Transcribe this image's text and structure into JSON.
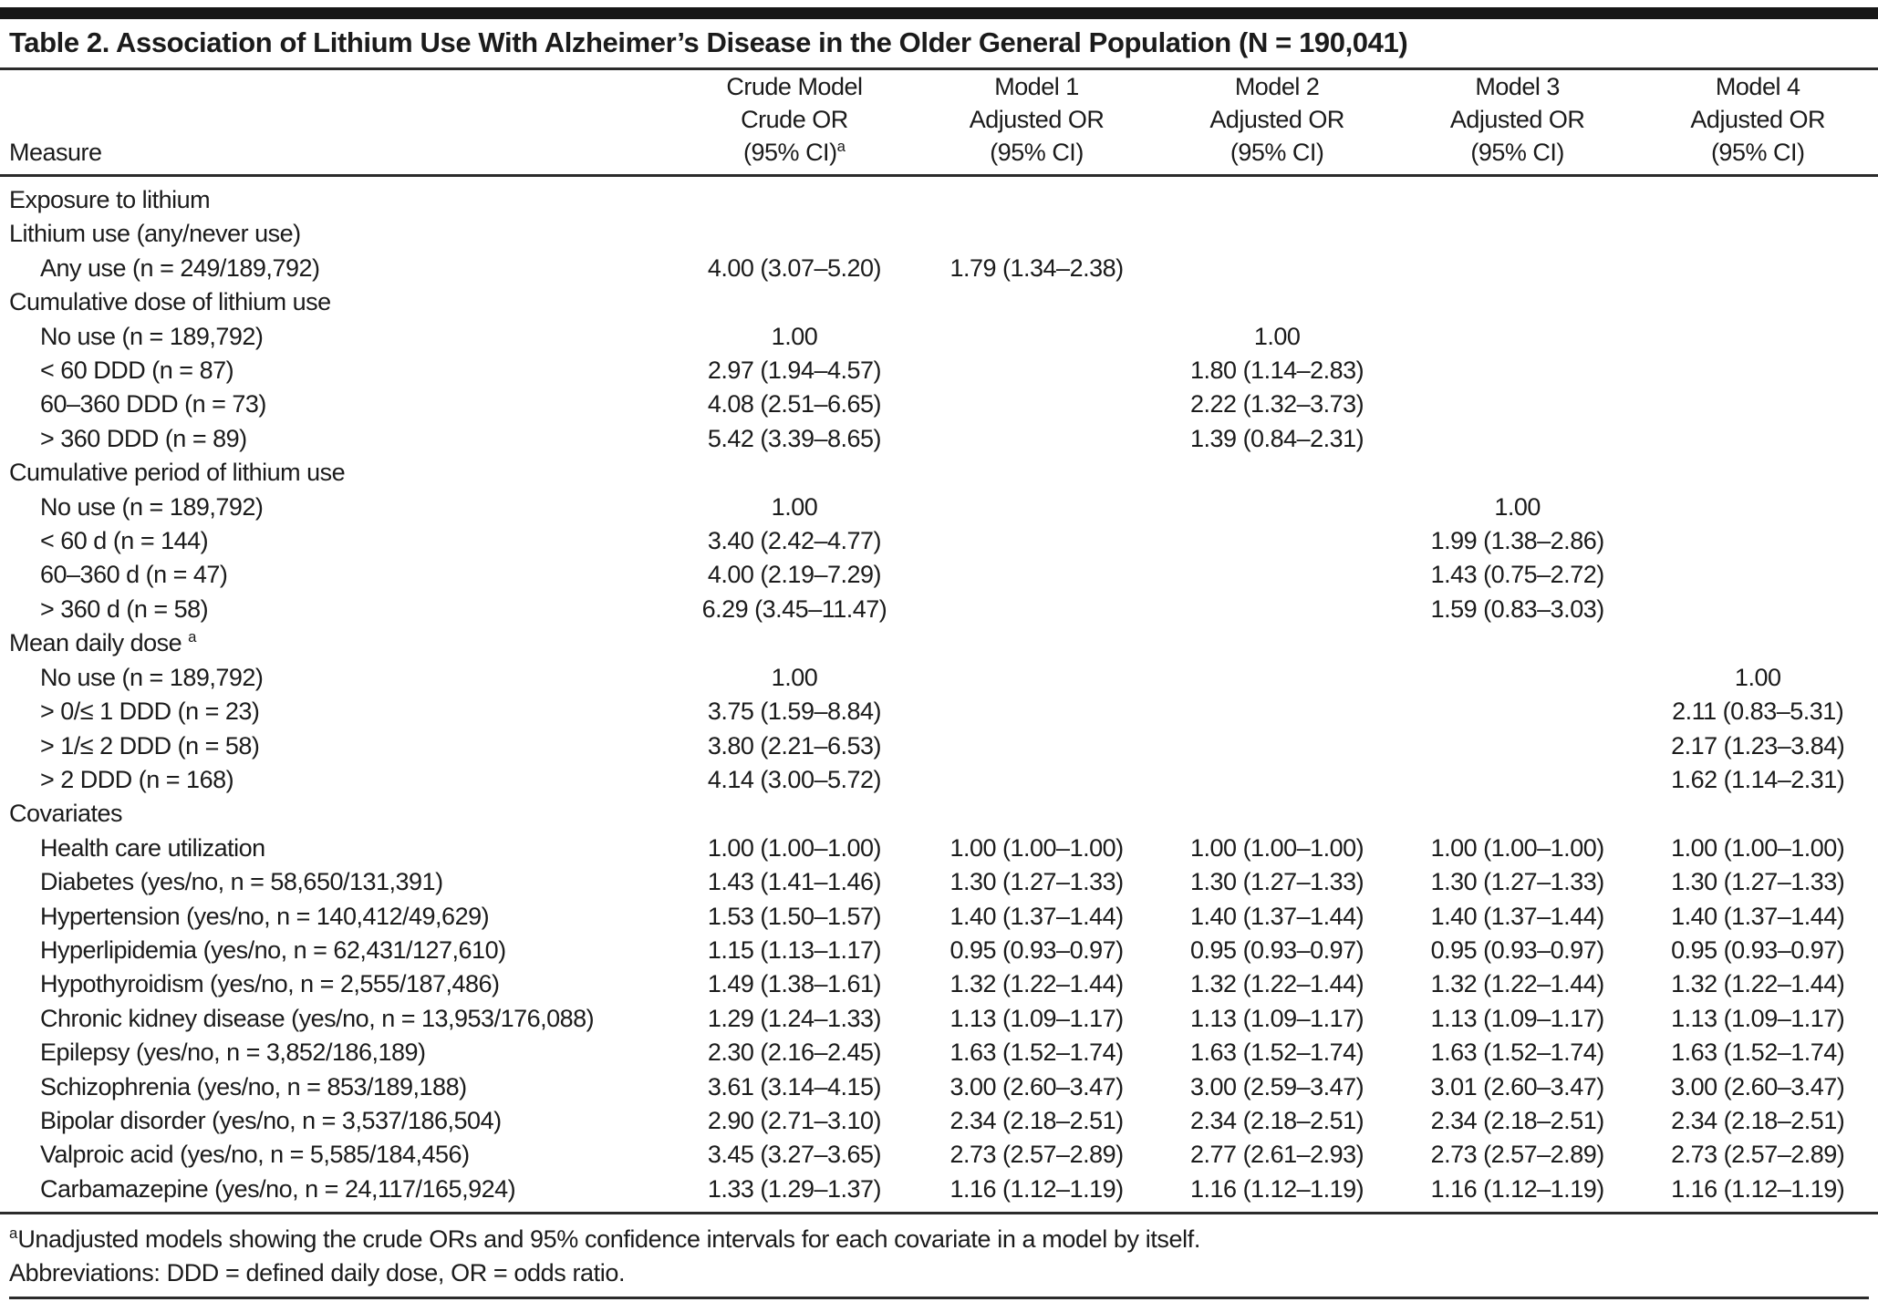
{
  "table": {
    "title": "Table 2. Association of Lithium Use With Alzheimer’s Disease in the Older General Population (N = 190,041)",
    "measure_header": "Measure",
    "columns": [
      {
        "line1": "Crude Model",
        "line2": "Crude OR",
        "line3": "(95% CI)",
        "sup": "a"
      },
      {
        "line1": "Model 1",
        "line2": "Adjusted OR",
        "line3": "(95% CI)",
        "sup": ""
      },
      {
        "line1": "Model 2",
        "line2": "Adjusted OR",
        "line3": "(95% CI)",
        "sup": ""
      },
      {
        "line1": "Model 3",
        "line2": "Adjusted OR",
        "line3": "(95% CI)",
        "sup": ""
      },
      {
        "line1": "Model 4",
        "line2": "Adjusted OR",
        "line3": "(95% CI)",
        "sup": ""
      }
    ],
    "rows": [
      {
        "label": "Exposure to lithium",
        "indent": 0,
        "sup": "",
        "values": [
          "",
          "",
          "",
          "",
          ""
        ]
      },
      {
        "label": "Lithium use (any/never use)",
        "indent": 0,
        "sup": "",
        "values": [
          "",
          "",
          "",
          "",
          ""
        ]
      },
      {
        "label": "Any use (n = 249/189,792)",
        "indent": 1,
        "sup": "",
        "values": [
          "4.00 (3.07–5.20)",
          "1.79 (1.34–2.38)",
          "",
          "",
          ""
        ]
      },
      {
        "label": "Cumulative dose of lithium use",
        "indent": 0,
        "sup": "",
        "values": [
          "",
          "",
          "",
          "",
          ""
        ]
      },
      {
        "label": "No use (n = 189,792)",
        "indent": 1,
        "sup": "",
        "values": [
          "1.00",
          "",
          "1.00",
          "",
          ""
        ]
      },
      {
        "label": "< 60 DDD (n = 87)",
        "indent": 1,
        "sup": "",
        "values": [
          "2.97 (1.94–4.57)",
          "",
          "1.80 (1.14–2.83)",
          "",
          ""
        ]
      },
      {
        "label": "60–360 DDD (n = 73)",
        "indent": 1,
        "sup": "",
        "values": [
          "4.08 (2.51–6.65)",
          "",
          "2.22 (1.32–3.73)",
          "",
          ""
        ]
      },
      {
        "label": "> 360 DDD (n = 89)",
        "indent": 1,
        "sup": "",
        "values": [
          "5.42 (3.39–8.65)",
          "",
          "1.39 (0.84–2.31)",
          "",
          ""
        ]
      },
      {
        "label": "Cumulative period of lithium use",
        "indent": 0,
        "sup": "",
        "values": [
          "",
          "",
          "",
          "",
          ""
        ]
      },
      {
        "label": "No use (n = 189,792)",
        "indent": 1,
        "sup": "",
        "values": [
          "1.00",
          "",
          "",
          "1.00",
          ""
        ]
      },
      {
        "label": "< 60 d (n = 144)",
        "indent": 1,
        "sup": "",
        "values": [
          "3.40 (2.42–4.77)",
          "",
          "",
          "1.99 (1.38–2.86)",
          ""
        ]
      },
      {
        "label": "60–360 d (n = 47)",
        "indent": 1,
        "sup": "",
        "values": [
          "4.00 (2.19–7.29)",
          "",
          "",
          "1.43 (0.75–2.72)",
          ""
        ]
      },
      {
        "label": "> 360 d (n = 58)",
        "indent": 1,
        "sup": "",
        "values": [
          "6.29 (3.45–11.47)",
          "",
          "",
          "1.59 (0.83–3.03)",
          ""
        ]
      },
      {
        "label": "Mean daily dose ",
        "indent": 0,
        "sup": "a",
        "values": [
          "",
          "",
          "",
          "",
          ""
        ]
      },
      {
        "label": "No use (n = 189,792)",
        "indent": 1,
        "sup": "",
        "values": [
          "1.00",
          "",
          "",
          "",
          "1.00"
        ]
      },
      {
        "label": "> 0/≤ 1 DDD (n = 23)",
        "indent": 1,
        "sup": "",
        "values": [
          "3.75 (1.59–8.84)",
          "",
          "",
          "",
          "2.11 (0.83–5.31)"
        ]
      },
      {
        "label": "> 1/≤ 2 DDD (n = 58)",
        "indent": 1,
        "sup": "",
        "values": [
          "3.80 (2.21–6.53)",
          "",
          "",
          "",
          "2.17 (1.23–3.84)"
        ]
      },
      {
        "label": "> 2 DDD (n = 168)",
        "indent": 1,
        "sup": "",
        "values": [
          "4.14 (3.00–5.72)",
          "",
          "",
          "",
          "1.62 (1.14–2.31)"
        ]
      },
      {
        "label": "Covariates",
        "indent": 0,
        "sup": "",
        "values": [
          "",
          "",
          "",
          "",
          ""
        ]
      },
      {
        "label": "Health care utilization",
        "indent": 1,
        "sup": "",
        "values": [
          "1.00 (1.00–1.00)",
          "1.00 (1.00–1.00)",
          "1.00 (1.00–1.00)",
          "1.00 (1.00–1.00)",
          "1.00 (1.00–1.00)"
        ]
      },
      {
        "label": "Diabetes (yes/no, n = 58,650/131,391)",
        "indent": 1,
        "sup": "",
        "values": [
          "1.43 (1.41–1.46)",
          "1.30 (1.27–1.33)",
          "1.30 (1.27–1.33)",
          "1.30 (1.27–1.33)",
          "1.30 (1.27–1.33)"
        ]
      },
      {
        "label": "Hypertension (yes/no, n = 140,412/49,629)",
        "indent": 1,
        "sup": "",
        "values": [
          "1.53 (1.50–1.57)",
          "1.40 (1.37–1.44)",
          "1.40 (1.37–1.44)",
          "1.40 (1.37–1.44)",
          "1.40 (1.37–1.44)"
        ]
      },
      {
        "label": "Hyperlipidemia (yes/no, n = 62,431/127,610)",
        "indent": 1,
        "sup": "",
        "values": [
          "1.15 (1.13–1.17)",
          "0.95 (0.93–0.97)",
          "0.95 (0.93–0.97)",
          "0.95 (0.93–0.97)",
          "0.95 (0.93–0.97)"
        ]
      },
      {
        "label": "Hypothyroidism (yes/no, n = 2,555/187,486)",
        "indent": 1,
        "sup": "",
        "values": [
          "1.49 (1.38–1.61)",
          "1.32 (1.22–1.44)",
          "1.32 (1.22–1.44)",
          "1.32 (1.22–1.44)",
          "1.32 (1.22–1.44)"
        ]
      },
      {
        "label": "Chronic kidney disease (yes/no, n = 13,953/176,088)",
        "indent": 1,
        "sup": "",
        "values": [
          "1.29 (1.24–1.33)",
          "1.13 (1.09–1.17)",
          "1.13 (1.09–1.17)",
          "1.13 (1.09–1.17)",
          "1.13 (1.09–1.17)"
        ]
      },
      {
        "label": "Epilepsy (yes/no, n = 3,852/186,189)",
        "indent": 1,
        "sup": "",
        "values": [
          "2.30 (2.16–2.45)",
          "1.63 (1.52–1.74)",
          "1.63 (1.52–1.74)",
          "1.63 (1.52–1.74)",
          "1.63 (1.52–1.74)"
        ]
      },
      {
        "label": "Schizophrenia (yes/no, n = 853/189,188)",
        "indent": 1,
        "sup": "",
        "values": [
          "3.61 (3.14–4.15)",
          "3.00 (2.60–3.47)",
          "3.00 (2.59–3.47)",
          "3.01 (2.60–3.47)",
          "3.00 (2.60–3.47)"
        ]
      },
      {
        "label": "Bipolar disorder (yes/no, n = 3,537/186,504)",
        "indent": 1,
        "sup": "",
        "values": [
          "2.90 (2.71–3.10)",
          "2.34 (2.18–2.51)",
          "2.34 (2.18–2.51)",
          "2.34 (2.18–2.51)",
          "2.34 (2.18–2.51)"
        ]
      },
      {
        "label": "Valproic acid (yes/no, n = 5,585/184,456)",
        "indent": 1,
        "sup": "",
        "values": [
          "3.45 (3.27–3.65)",
          "2.73 (2.57–2.89)",
          "2.77 (2.61–2.93)",
          "2.73 (2.57–2.89)",
          "2.73 (2.57–2.89)"
        ]
      },
      {
        "label": "Carbamazepine (yes/no, n = 24,117/165,924)",
        "indent": 1,
        "sup": "",
        "values": [
          "1.33 (1.29–1.37)",
          "1.16 (1.12–1.19)",
          "1.16 (1.12–1.19)",
          "1.16 (1.12–1.19)",
          "1.16 (1.12–1.19)"
        ]
      }
    ],
    "footnotes": [
      {
        "marker": "a",
        "text": "Unadjusted models showing the crude ORs and 95% confidence intervals for each covariate in a model by itself."
      },
      {
        "marker": "",
        "text": "Abbreviations: DDD = defined daily dose, OR = odds ratio."
      }
    ]
  }
}
